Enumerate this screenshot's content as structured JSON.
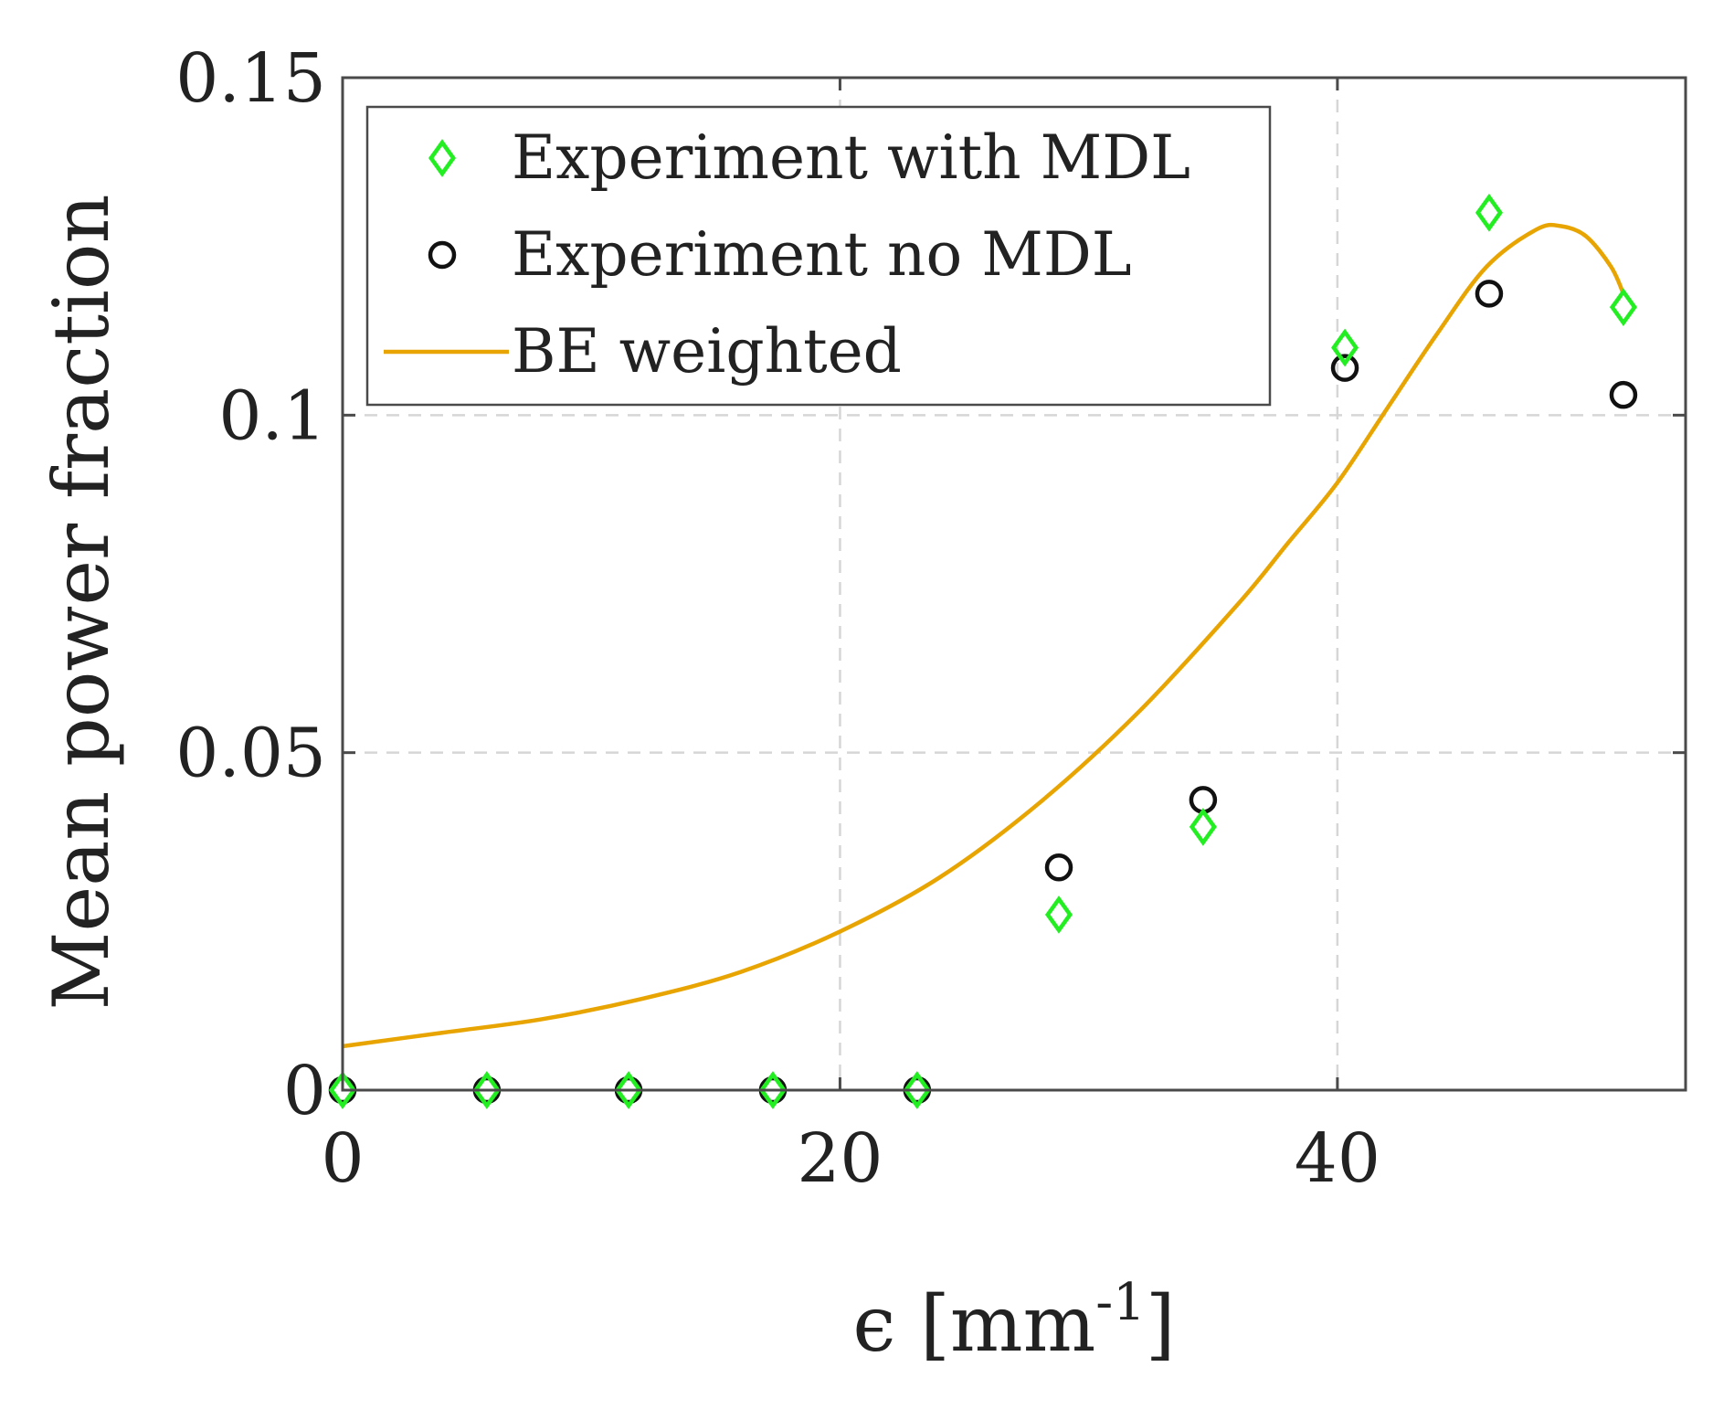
{
  "chart_data": {
    "type": "scatter",
    "title": "",
    "xlabel": "ϵ [mm",
    "xlabel_sup": "-1",
    "xlabel_end": "]",
    "ylabel": "Mean power fraction",
    "xlim": [
      0,
      54
    ],
    "ylim": [
      0,
      0.15
    ],
    "xticks": [
      0,
      20,
      40
    ],
    "xtick_labels": [
      "0",
      "20",
      "40"
    ],
    "yticks": [
      0,
      0.05,
      0.1,
      0.15
    ],
    "ytick_labels": [
      "0",
      "0.05",
      "0.1",
      "0.15"
    ],
    "grid": true,
    "legend_position": "top-left",
    "series": [
      {
        "name": "Experiment with MDL",
        "kind": "scatter",
        "marker": "diamond",
        "color": "#22ee22",
        "x": [
          0,
          5.8,
          11.5,
          17.3,
          23.1,
          28.8,
          34.6,
          40.3,
          46.1,
          51.5
        ],
        "y": [
          0,
          0,
          0,
          0,
          0,
          0.026,
          0.039,
          0.11,
          0.13,
          0.116
        ]
      },
      {
        "name": "Experiment no MDL",
        "kind": "scatter",
        "marker": "circle",
        "color": "#111111",
        "x": [
          0,
          5.8,
          11.5,
          17.3,
          23.1,
          28.8,
          34.6,
          40.3,
          46.1,
          51.5
        ],
        "y": [
          0,
          0,
          0,
          0,
          0,
          0.033,
          0.043,
          0.107,
          0.118,
          0.103
        ]
      },
      {
        "name": "BE weighted",
        "kind": "line",
        "color": "#e8a400",
        "x": [
          0,
          4,
          8,
          12,
          16,
          20,
          24,
          28,
          32,
          36,
          38,
          40,
          42,
          44,
          46,
          48,
          49,
          50,
          51,
          51.5
        ],
        "y": [
          0.0065,
          0.0085,
          0.0105,
          0.0135,
          0.0175,
          0.0235,
          0.0315,
          0.0425,
          0.056,
          0.072,
          0.081,
          0.09,
          0.101,
          0.112,
          0.122,
          0.1275,
          0.128,
          0.1265,
          0.122,
          0.118
        ]
      }
    ]
  }
}
